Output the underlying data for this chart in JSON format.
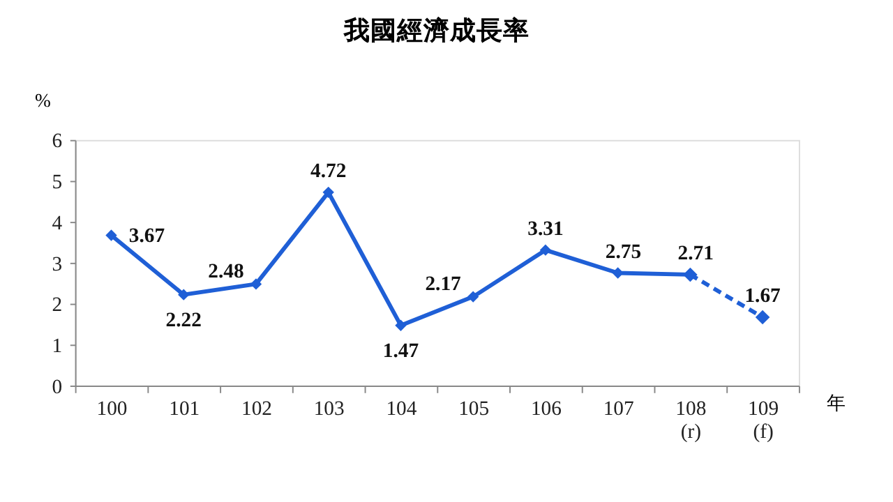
{
  "chart_data": {
    "type": "line",
    "title": "我國經濟成長率",
    "xlabel": "年",
    "ylabel": "%",
    "categories": [
      "100",
      "101",
      "102",
      "103",
      "104",
      "105",
      "106",
      "107",
      "108\n(r)",
      "109\n(f)"
    ],
    "series": [
      {
        "color": "#1f5fd6",
        "line_style": "solid",
        "values": [
          3.67,
          2.22,
          2.48,
          4.72,
          1.47,
          2.17,
          3.31,
          2.75,
          2.71,
          null
        ]
      },
      {
        "color": "#1f5fd6",
        "line_style": "dashed",
        "values": [
          null,
          null,
          null,
          null,
          null,
          null,
          null,
          null,
          2.71,
          1.67
        ],
        "value_labels": [
          null,
          null,
          null,
          null,
          null,
          null,
          null,
          null,
          null,
          "1.67"
        ]
      }
    ],
    "ylim": [
      0,
      6
    ],
    "yticks": [
      0,
      1,
      2,
      3,
      4,
      5,
      6
    ],
    "grid": false,
    "marker": "diamond",
    "data_labels": true
  }
}
